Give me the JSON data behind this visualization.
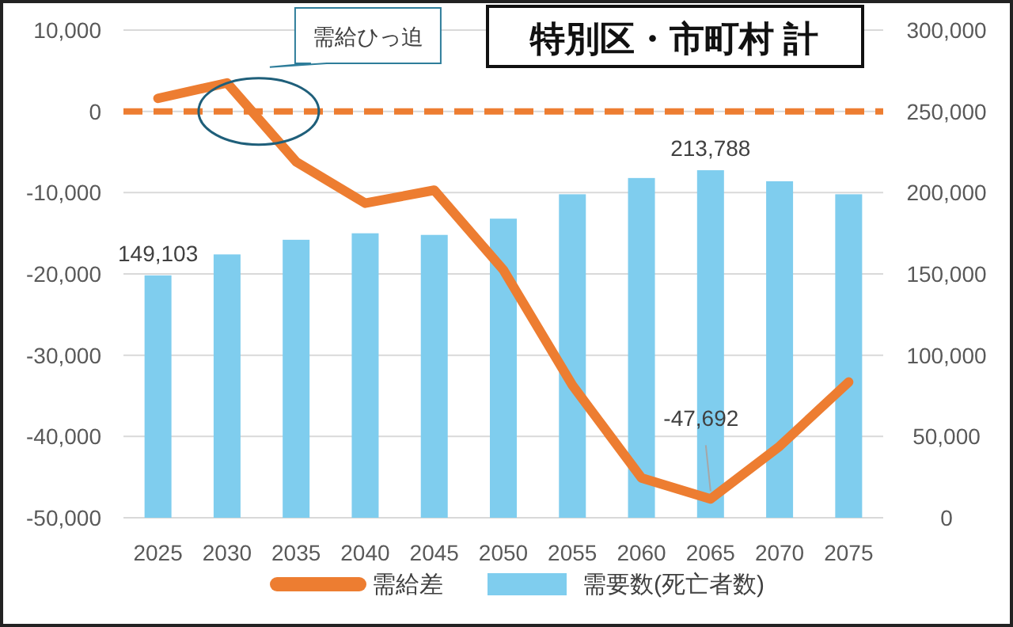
{
  "chart_data": {
    "type": "bar",
    "title": "特別区・市町村 計",
    "categories": [
      "2025",
      "2030",
      "2035",
      "2040",
      "2045",
      "2050",
      "2055",
      "2060",
      "2065",
      "2070",
      "2075"
    ],
    "series": [
      {
        "name": "需給差",
        "type": "line",
        "axis": "y",
        "color": "#ed7d31",
        "values": [
          1600,
          3500,
          -6200,
          -11300,
          -9700,
          -19500,
          -33700,
          -45100,
          -47692,
          -41200,
          -33300
        ],
        "value_labels": [
          null,
          null,
          null,
          null,
          null,
          null,
          null,
          null,
          "-47,692",
          null,
          null
        ]
      },
      {
        "name": "需要数(死亡者数)",
        "axis": "y2",
        "color": "#7fcdee",
        "values": [
          149103,
          162000,
          171000,
          175000,
          174000,
          184000,
          199000,
          209000,
          213788,
          207000,
          199000
        ],
        "value_labels": [
          "149,103",
          null,
          null,
          null,
          null,
          null,
          null,
          null,
          "213,788",
          null,
          null
        ]
      }
    ],
    "ylim": [
      -50000,
      10000
    ],
    "yticks": [
      {
        "value": -50000,
        "label": "-50,000"
      },
      {
        "value": -40000,
        "label": "-40,000"
      },
      {
        "value": -30000,
        "label": "-30,000"
      },
      {
        "value": -20000,
        "label": "-20,000"
      },
      {
        "value": -10000,
        "label": "-10,000"
      },
      0,
      {
        "value": 10000,
        "label": "10,000"
      }
    ],
    "y2lim": [
      0,
      300000
    ],
    "y2ticks": [
      0,
      {
        "value": 50000,
        "label": "50,000"
      },
      {
        "value": 100000,
        "label": "100,000"
      },
      {
        "value": 150000,
        "label": "150,000"
      },
      {
        "value": 200000,
        "label": "200,000"
      },
      {
        "value": 250000,
        "label": "250,000"
      },
      {
        "value": 300000,
        "label": "300,000"
      }
    ],
    "grid": "y",
    "legend": "bottom",
    "ref_lines": [
      {
        "axis": "y",
        "value": 0,
        "color": "#ed7d31",
        "line_style": "dashed"
      }
    ],
    "annotations": [
      "需給ひっ迫"
    ]
  }
}
